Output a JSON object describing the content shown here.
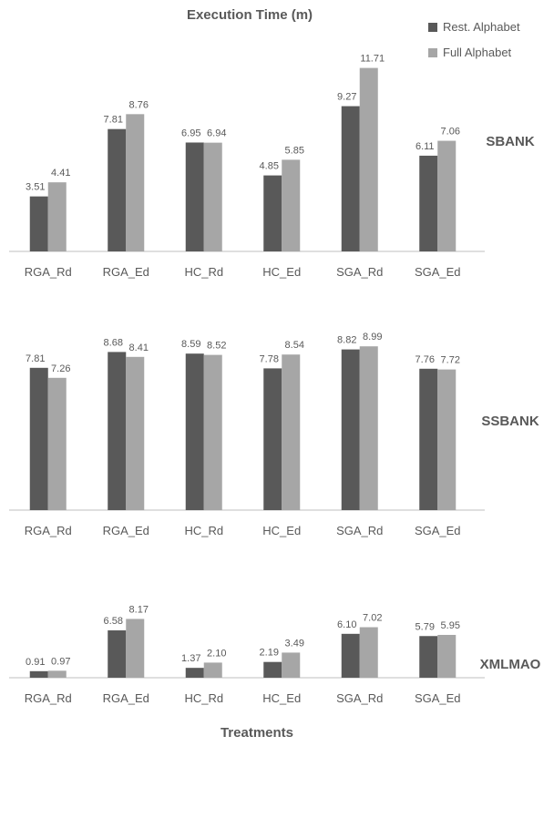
{
  "title": "Execution Time (m)",
  "xlabel": "Treatments",
  "legend": [
    "Rest. Alphabet",
    "Full Alphabet"
  ],
  "colors": {
    "rest": "#595959",
    "full": "#a6a6a6",
    "axis": "#bfbfbf",
    "text": "#595959"
  },
  "chart_data": [
    {
      "type": "bar",
      "name": "SBANK",
      "categories": [
        "RGA_Rd",
        "RGA_Ed",
        "HC_Rd",
        "HC_Ed",
        "SGA_Rd",
        "SGA_Ed"
      ],
      "series": [
        {
          "name": "Rest. Alphabet",
          "values": [
            3.51,
            7.81,
            6.95,
            4.85,
            9.27,
            6.11
          ]
        },
        {
          "name": "Full Alphabet",
          "values": [
            4.41,
            8.76,
            6.94,
            5.85,
            11.71,
            7.06
          ]
        }
      ],
      "ylim": [
        0,
        12
      ]
    },
    {
      "type": "bar",
      "name": "SSBANK",
      "categories": [
        "RGA_Rd",
        "RGA_Ed",
        "HC_Rd",
        "HC_Ed",
        "SGA_Rd",
        "SGA_Ed"
      ],
      "series": [
        {
          "name": "Rest. Alphabet",
          "values": [
            7.81,
            8.68,
            8.59,
            7.78,
            8.82,
            7.76
          ]
        },
        {
          "name": "Full Alphabet",
          "values": [
            7.26,
            8.41,
            8.52,
            8.54,
            8.99,
            7.72
          ]
        }
      ],
      "ylim": [
        0,
        10.5
      ]
    },
    {
      "type": "bar",
      "name": "XMLMAO",
      "categories": [
        "RGA_Rd",
        "RGA_Ed",
        "HC_Rd",
        "HC_Ed",
        "SGA_Rd",
        "SGA_Ed"
      ],
      "series": [
        {
          "name": "Rest. Alphabet",
          "values": [
            0.91,
            6.58,
            1.37,
            2.19,
            6.1,
            5.79
          ]
        },
        {
          "name": "Full Alphabet",
          "values": [
            0.97,
            8.17,
            2.1,
            3.49,
            7.02,
            5.95
          ]
        }
      ],
      "ylim": [
        0,
        9
      ]
    }
  ]
}
